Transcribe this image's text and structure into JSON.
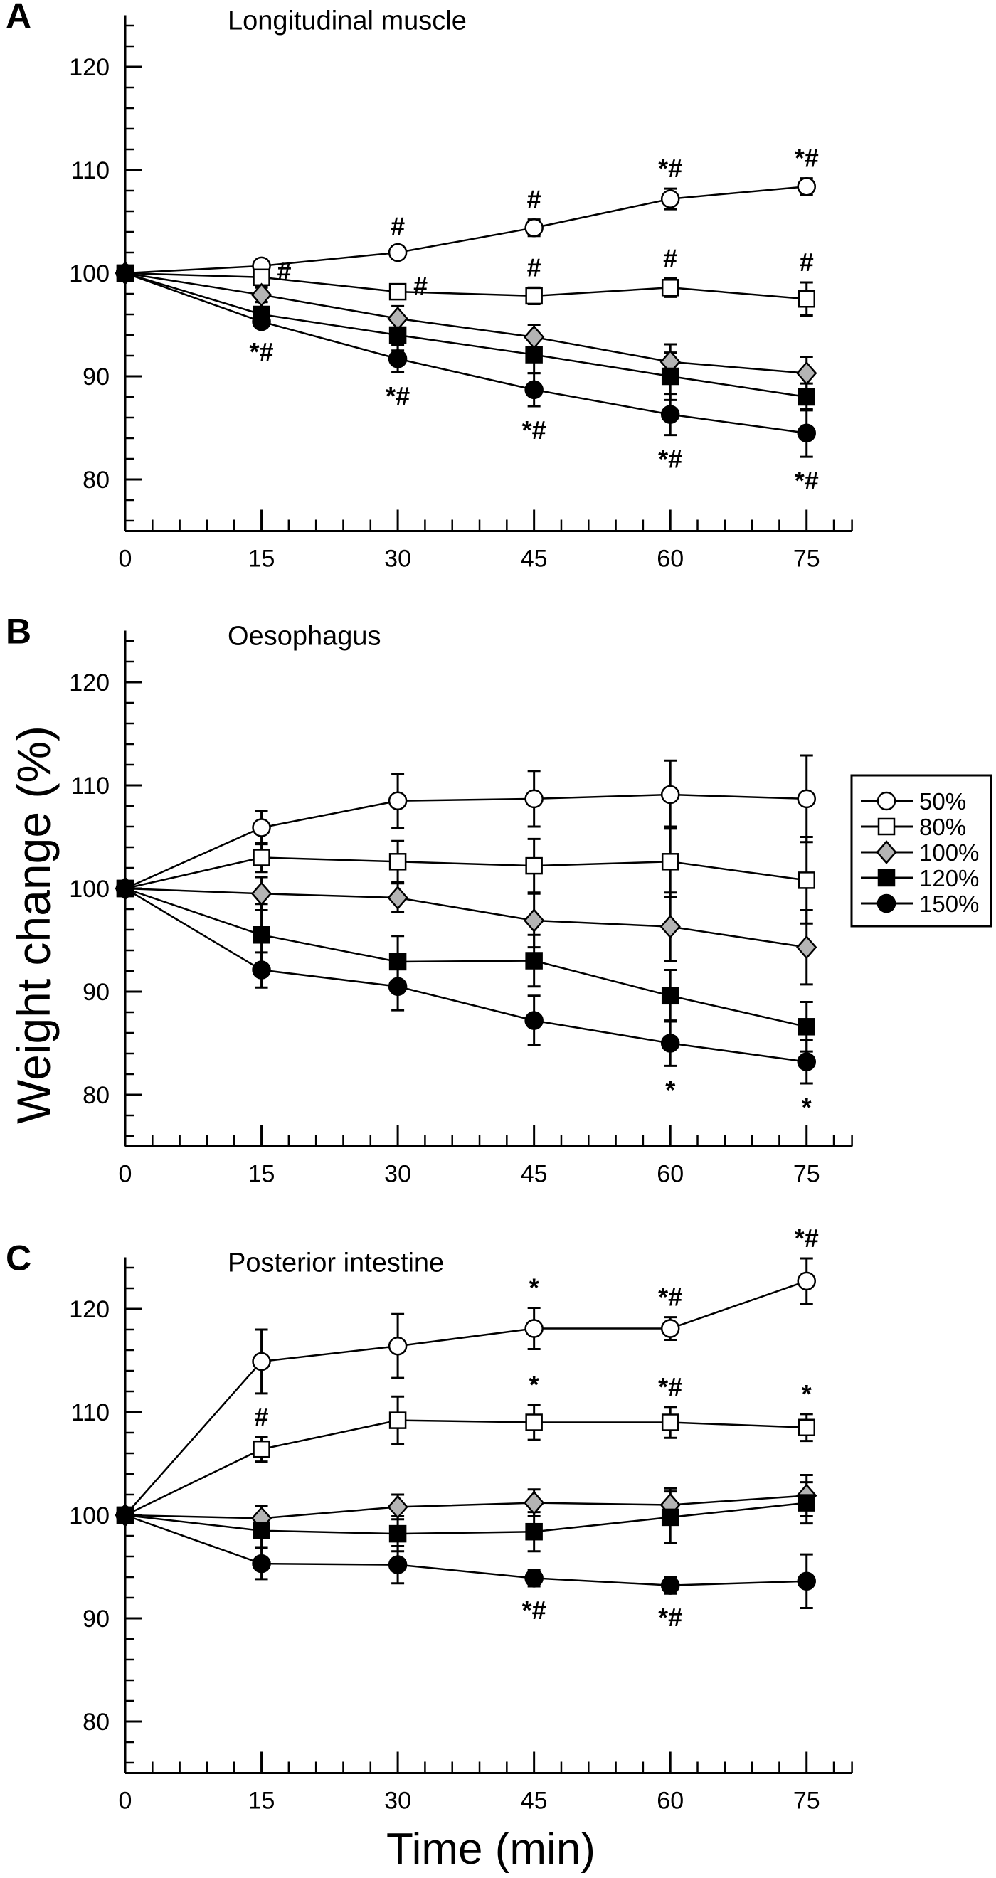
{
  "figure": {
    "ylabel": "Weight change (%)",
    "xlabel": "Time (min)"
  },
  "legend": {
    "placement": "right of panel B",
    "entries": [
      {
        "label": "50%",
        "marker": "open-circle"
      },
      {
        "label": "80%",
        "marker": "open-square"
      },
      {
        "label": "100%",
        "marker": "gray-diamond"
      },
      {
        "label": "120%",
        "marker": "filled-square"
      },
      {
        "label": "150%",
        "marker": "filled-circle"
      }
    ]
  },
  "colors": {
    "line": "#000000",
    "open_fill": "#ffffff",
    "diamond_fill": "#b4b4b4",
    "filled": "#000000"
  },
  "chart_data": [
    {
      "panel": "A",
      "title": "Longitudinal muscle",
      "type": "line",
      "xlabel": "",
      "ylabel": "",
      "x": [
        0,
        15,
        30,
        45,
        60,
        75
      ],
      "xlim": [
        0,
        80
      ],
      "ylim": [
        75,
        125
      ],
      "xticks": [
        "0",
        "15",
        "30",
        "45",
        "60",
        "75"
      ],
      "yticks": [
        "80",
        "90",
        "100",
        "110",
        "120"
      ],
      "grid": false,
      "series": [
        {
          "name": "50%",
          "marker": "open-circle",
          "values": [
            100,
            100.7,
            102.0,
            104.4,
            107.2,
            108.4
          ],
          "errors": [
            0,
            0.6,
            0.6,
            0.8,
            1.0,
            0.8
          ],
          "annotations": [
            {
              "x": 30,
              "text": "#",
              "position": "above"
            },
            {
              "x": 45,
              "text": "#",
              "position": "above"
            },
            {
              "x": 60,
              "text": "*#",
              "position": "above"
            },
            {
              "x": 75,
              "text": "*#",
              "position": "above"
            }
          ]
        },
        {
          "name": "80%",
          "marker": "open-square",
          "values": [
            100,
            99.6,
            98.2,
            97.8,
            98.6,
            97.5
          ],
          "errors": [
            0,
            0.9,
            0.4,
            0.8,
            0.9,
            1.6
          ],
          "annotations": [
            {
              "x": 15,
              "text": "#",
              "position": "right"
            },
            {
              "x": 30,
              "text": "#",
              "position": "right"
            },
            {
              "x": 45,
              "text": "#",
              "position": "above"
            },
            {
              "x": 60,
              "text": "#",
              "position": "above"
            },
            {
              "x": 75,
              "text": "#",
              "position": "above"
            }
          ]
        },
        {
          "name": "100%",
          "marker": "gray-diamond",
          "values": [
            100,
            97.9,
            95.6,
            93.8,
            91.4,
            90.3
          ],
          "errors": [
            0,
            0.7,
            1.2,
            1.2,
            1.7,
            1.6
          ],
          "annotations": []
        },
        {
          "name": "120%",
          "marker": "filled-square",
          "values": [
            100,
            96.0,
            94.0,
            92.1,
            90.0,
            88.0
          ],
          "errors": [
            0,
            1.2,
            1.5,
            1.8,
            2.3,
            1.3
          ],
          "annotations": []
        },
        {
          "name": "150%",
          "marker": "filled-circle",
          "values": [
            100,
            95.3,
            91.7,
            88.7,
            86.3,
            84.5
          ],
          "errors": [
            0,
            0.6,
            1.3,
            1.6,
            2.0,
            2.3
          ],
          "annotations": [
            {
              "x": 15,
              "text": "*#",
              "position": "below"
            },
            {
              "x": 30,
              "text": "*#",
              "position": "below"
            },
            {
              "x": 45,
              "text": "*#",
              "position": "below"
            },
            {
              "x": 60,
              "text": "*#",
              "position": "below"
            },
            {
              "x": 75,
              "text": "*#",
              "position": "below"
            }
          ]
        }
      ]
    },
    {
      "panel": "B",
      "title": "Oesophagus",
      "type": "line",
      "xlabel": "",
      "ylabel": "Weight change (%)",
      "x": [
        0,
        15,
        30,
        45,
        60,
        75
      ],
      "xlim": [
        0,
        80
      ],
      "ylim": [
        75,
        125
      ],
      "xticks": [
        "0",
        "15",
        "30",
        "45",
        "60",
        "75"
      ],
      "yticks": [
        "80",
        "90",
        "100",
        "110",
        "120"
      ],
      "grid": false,
      "series": [
        {
          "name": "50%",
          "marker": "open-circle",
          "values": [
            100,
            105.9,
            108.5,
            108.7,
            109.1,
            108.7
          ],
          "errors": [
            0,
            1.6,
            2.6,
            2.7,
            3.3,
            4.2
          ],
          "annotations": []
        },
        {
          "name": "80%",
          "marker": "open-square",
          "values": [
            100,
            103.0,
            102.6,
            102.2,
            102.6,
            100.8
          ],
          "errors": [
            0,
            1.4,
            2.0,
            2.6,
            3.4,
            4.2
          ],
          "annotations": []
        },
        {
          "name": "100%",
          "marker": "gray-diamond",
          "values": [
            100,
            99.5,
            99.1,
            96.9,
            96.3,
            94.3
          ],
          "errors": [
            0,
            1.6,
            1.4,
            2.6,
            3.3,
            3.6
          ],
          "annotations": []
        },
        {
          "name": "120%",
          "marker": "filled-square",
          "values": [
            100,
            95.5,
            92.9,
            93.0,
            89.6,
            86.6
          ],
          "errors": [
            0,
            3.0,
            2.5,
            2.5,
            2.5,
            2.4
          ],
          "annotations": []
        },
        {
          "name": "150%",
          "marker": "filled-circle",
          "values": [
            100,
            92.1,
            90.5,
            87.2,
            85.0,
            83.2
          ],
          "errors": [
            0,
            1.7,
            2.3,
            2.4,
            2.2,
            2.1
          ],
          "annotations": [
            {
              "x": 60,
              "text": "*",
              "position": "below"
            },
            {
              "x": 75,
              "text": "*",
              "position": "below"
            }
          ]
        }
      ]
    },
    {
      "panel": "C",
      "title": "Posterior intestine",
      "type": "line",
      "xlabel": "Time (min)",
      "ylabel": "",
      "x": [
        0,
        15,
        30,
        45,
        60,
        75
      ],
      "xlim": [
        0,
        80
      ],
      "ylim": [
        75,
        125
      ],
      "xticks": [
        "0",
        "15",
        "30",
        "45",
        "60",
        "75"
      ],
      "yticks": [
        "80",
        "90",
        "100",
        "110",
        "120"
      ],
      "grid": false,
      "series": [
        {
          "name": "50%",
          "marker": "open-circle",
          "values": [
            100,
            114.9,
            116.4,
            118.1,
            118.1,
            122.7
          ],
          "errors": [
            0,
            3.1,
            3.1,
            2.0,
            1.1,
            2.2
          ],
          "annotations": [
            {
              "x": 45,
              "text": "*",
              "position": "above"
            },
            {
              "x": 60,
              "text": "*#",
              "position": "above"
            },
            {
              "x": 75,
              "text": "*#",
              "position": "above"
            }
          ]
        },
        {
          "name": "80%",
          "marker": "open-square",
          "values": [
            100,
            106.4,
            109.2,
            109.0,
            109.0,
            108.5
          ],
          "errors": [
            0,
            1.2,
            2.3,
            1.7,
            1.5,
            1.3
          ],
          "annotations": [
            {
              "x": 15,
              "text": "#",
              "position": "above"
            },
            {
              "x": 45,
              "text": "*",
              "position": "above"
            },
            {
              "x": 60,
              "text": "*#",
              "position": "above"
            },
            {
              "x": 75,
              "text": "*",
              "position": "above"
            }
          ]
        },
        {
          "name": "100%",
          "marker": "gray-diamond",
          "values": [
            100,
            99.7,
            100.8,
            101.2,
            101.0,
            101.9
          ],
          "errors": [
            0,
            1.2,
            1.2,
            1.3,
            1.6,
            2.0
          ],
          "annotations": []
        },
        {
          "name": "120%",
          "marker": "filled-square",
          "values": [
            100,
            98.5,
            98.2,
            98.4,
            99.8,
            101.2
          ],
          "errors": [
            0,
            1.6,
            1.7,
            1.9,
            2.5,
            2.0
          ],
          "annotations": []
        },
        {
          "name": "150%",
          "marker": "filled-circle",
          "values": [
            100,
            95.3,
            95.2,
            93.9,
            93.2,
            93.6
          ],
          "errors": [
            0,
            1.5,
            1.8,
            0.8,
            0.8,
            2.6
          ],
          "annotations": [
            {
              "x": 45,
              "text": "*#",
              "position": "below"
            },
            {
              "x": 60,
              "text": "*#",
              "position": "below"
            }
          ]
        }
      ]
    }
  ]
}
